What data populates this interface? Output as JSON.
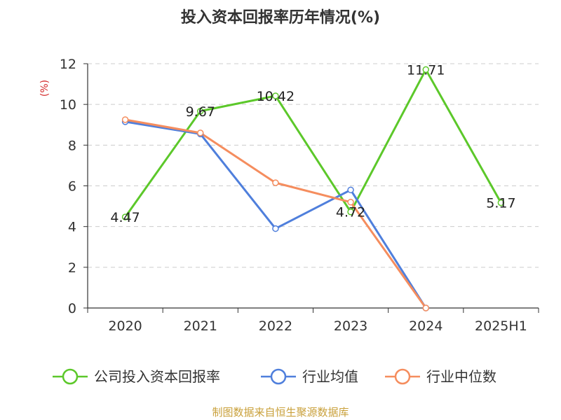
{
  "title": "投入资本回报率历年情况(%)",
  "unit": "(%)",
  "source": "制图数据来自恒生聚源数据库",
  "colors": {
    "company": "#5cc82a",
    "industry_avg": "#4f7fdc",
    "industry_median": "#f58d5e",
    "unit_text": "#d42a2a",
    "source_text": "#c9a03a"
  },
  "chart_data": {
    "type": "line",
    "title": "投入资本回报率历年情况(%)",
    "ylabel": "(%)",
    "categories": [
      "2020",
      "2021",
      "2022",
      "2023",
      "2024",
      "2025H1"
    ],
    "ylim": [
      0,
      12
    ],
    "yticks": [
      0,
      2,
      4,
      6,
      8,
      10,
      12
    ],
    "grid": true,
    "legend_position": "bottom",
    "series": [
      {
        "name": "公司投入资本回报率",
        "color": "#5cc82a",
        "values": [
          4.47,
          9.67,
          10.42,
          4.72,
          11.71,
          5.17
        ],
        "labels": [
          "4.47",
          "9.67",
          "10.42",
          "4.72",
          "11.71",
          "5.17"
        ]
      },
      {
        "name": "行业均值",
        "color": "#4f7fdc",
        "values": [
          9.15,
          8.55,
          3.9,
          5.8,
          0.0,
          null
        ]
      },
      {
        "name": "行业中位数",
        "color": "#f58d5e",
        "values": [
          9.25,
          8.6,
          6.15,
          5.2,
          0.0,
          null
        ]
      }
    ]
  }
}
